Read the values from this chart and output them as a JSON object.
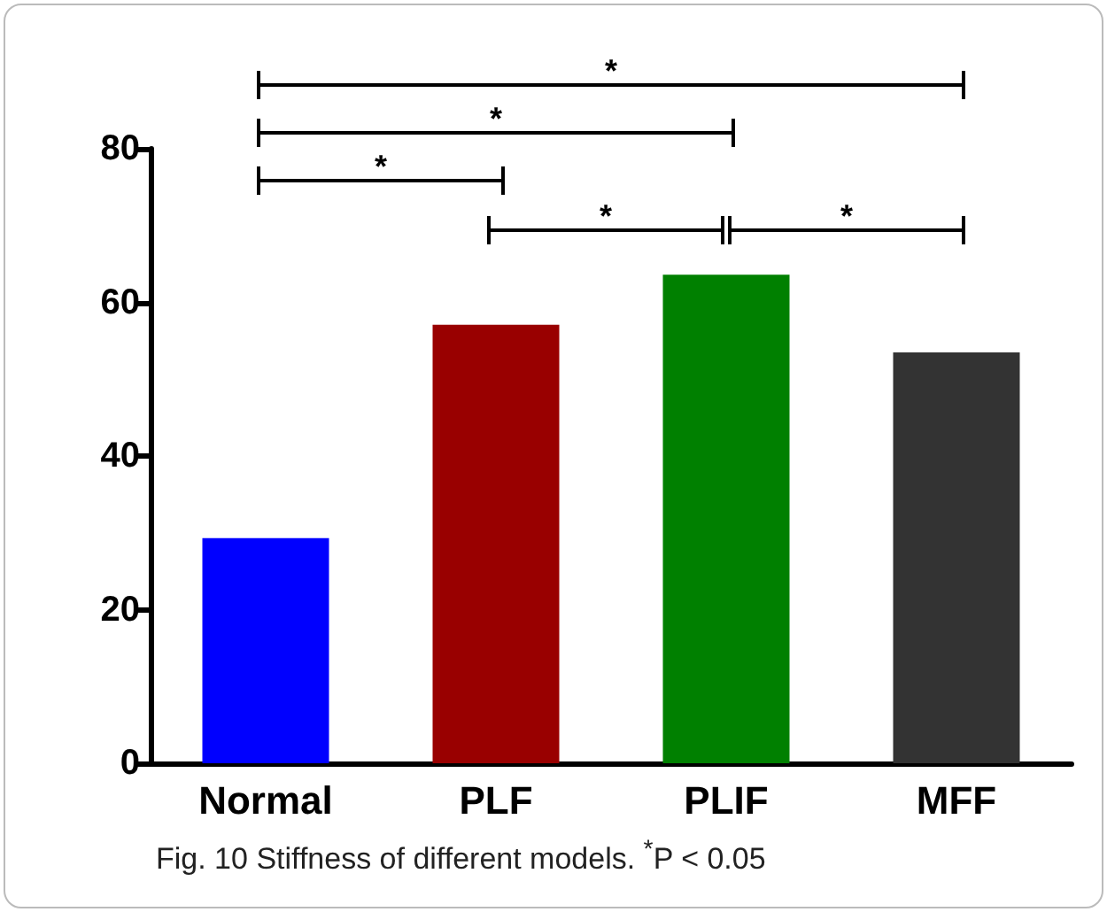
{
  "chart_data": {
    "type": "bar",
    "categories": [
      "Normal",
      "PLF",
      "PLIF",
      "MFF"
    ],
    "values": [
      29.3,
      57.1,
      63.6,
      53.5
    ],
    "colors": [
      "#0000ff",
      "#990000",
      "#008000",
      "#333333"
    ],
    "ylim": [
      0,
      80
    ],
    "yticks": [
      0,
      20,
      40,
      60,
      80
    ],
    "grid": false,
    "annotations": [
      "*",
      "*",
      "*",
      "*",
      "*",
      "Fig. 10 Stiffness of different models. $^{*}$P < 0.05"
    ]
  }
}
